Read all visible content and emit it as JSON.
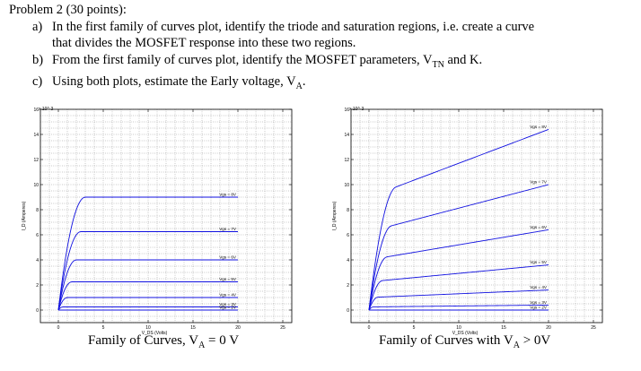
{
  "problem": {
    "title": "Problem 2 (30 points):",
    "items": [
      {
        "label": "a)",
        "line1": "In the first family of curves plot, identify the triode and saturation regions, i.e. create a curve",
        "line2": "that divides the MOSFET response into these two regions."
      },
      {
        "label": "b)",
        "line1": "From the first family of curves plot, identify the MOSFET parameters, V",
        "sub": "TN",
        "tail": " and K."
      },
      {
        "label": "c)",
        "line1": "Using both plots, estimate the Early voltage, V",
        "sub": "A",
        "tail": "."
      }
    ]
  },
  "chart_data": [
    {
      "type": "line",
      "caption": "Family of Curves, V",
      "caption_sub": "A",
      "caption_tail": " = 0 V",
      "xlabel": "V_DS (Volts)",
      "ylabel": "I_D (Amperes)",
      "xlim": [
        -2,
        26
      ],
      "ylim": [
        -1,
        16
      ],
      "y_exponent": "x 10^-3",
      "xticks": [
        0,
        5,
        10,
        15,
        20,
        25
      ],
      "yticks": [
        0,
        2,
        4,
        6,
        8,
        10,
        12,
        14,
        16
      ],
      "grid": true,
      "early_voltage_inverse": 0,
      "series": [
        {
          "name": "Vgs = 8V",
          "vov": 3.0,
          "isat": 9.0
        },
        {
          "name": "Vgs = 7V",
          "vov": 2.5,
          "isat": 6.25
        },
        {
          "name": "Vgs = 6V",
          "vov": 2.0,
          "isat": 4.0
        },
        {
          "name": "Vgs = 5V",
          "vov": 1.5,
          "isat": 2.25
        },
        {
          "name": "Vgs = 4V",
          "vov": 1.0,
          "isat": 1.0
        },
        {
          "name": "Vgs = 3V",
          "vov": 0.5,
          "isat": 0.25
        },
        {
          "name": "Vgs = 2V",
          "vov": 0.0,
          "isat": 0.0
        }
      ]
    },
    {
      "type": "line",
      "caption": "Family of Curves with V",
      "caption_sub": "A",
      "caption_tail": " > 0V",
      "xlabel": "V_DS (Volts)",
      "ylabel": "I_D (Amperes)",
      "xlim": [
        -2,
        26
      ],
      "ylim": [
        -1,
        16
      ],
      "y_exponent": "x 10^-3",
      "xticks": [
        0,
        5,
        10,
        15,
        20,
        25
      ],
      "yticks": [
        0,
        2,
        4,
        6,
        8,
        10,
        12,
        14,
        16
      ],
      "grid": true,
      "early_voltage_inverse": 0.03,
      "series": [
        {
          "name": "Vgs = 8V",
          "vov": 3.0,
          "isat": 9.0
        },
        {
          "name": "Vgs = 7V",
          "vov": 2.5,
          "isat": 6.25
        },
        {
          "name": "Vgs = 6V",
          "vov": 2.0,
          "isat": 4.0
        },
        {
          "name": "Vgs = 5V",
          "vov": 1.5,
          "isat": 2.25
        },
        {
          "name": "Vgs = 4V",
          "vov": 1.0,
          "isat": 1.0
        },
        {
          "name": "Vgs = 3V",
          "vov": 0.5,
          "isat": 0.25
        },
        {
          "name": "Vgs = 2V",
          "vov": 0.0,
          "isat": 0.0
        }
      ]
    }
  ],
  "colors": {
    "curve": "#1010e0",
    "grid": "#555555",
    "frame": "#000000"
  }
}
